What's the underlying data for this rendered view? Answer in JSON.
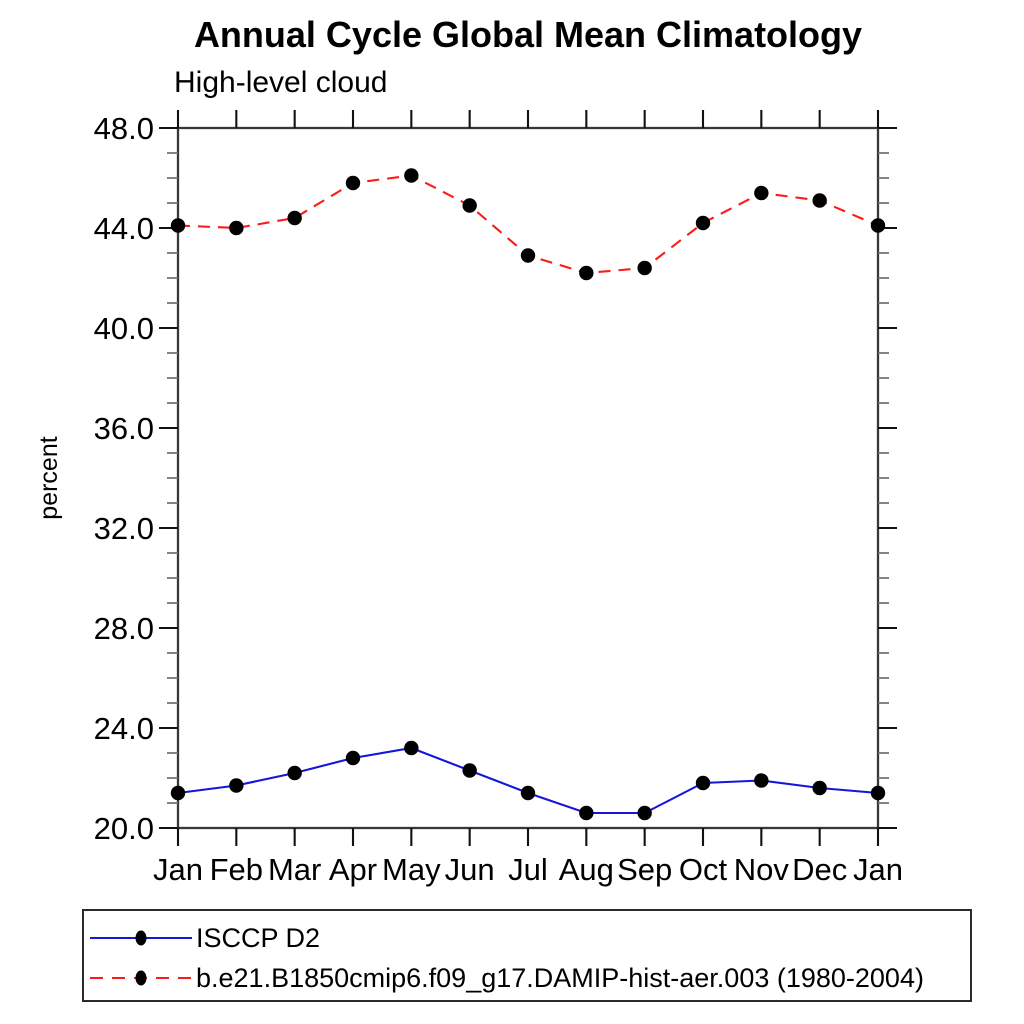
{
  "title": "Annual Cycle Global Mean Climatology",
  "subtitle": "High-level cloud",
  "chart_data": {
    "type": "line",
    "categories": [
      "Jan",
      "Feb",
      "Mar",
      "Apr",
      "May",
      "Jun",
      "Jul",
      "Aug",
      "Sep",
      "Oct",
      "Nov",
      "Dec",
      "Jan"
    ],
    "xlabel": "",
    "ylabel": "percent",
    "ylim": [
      20.0,
      48.0
    ],
    "ytick_interval": 4.0,
    "yminor_interval": 1.0,
    "ytick_labels": [
      "20.0",
      "24.0",
      "28.0",
      "32.0",
      "36.0",
      "40.0",
      "44.0",
      "48.0"
    ],
    "grid": false,
    "legend_position": "bottom-left-box",
    "series": [
      {
        "name": "ISCCP D2",
        "color": "#1515dd",
        "line_style": "solid",
        "marker": "filled-circle",
        "marker_color": "#000000",
        "values": [
          21.4,
          21.7,
          22.2,
          22.8,
          23.2,
          22.3,
          21.4,
          20.6,
          20.6,
          21.8,
          21.9,
          21.6,
          21.4
        ]
      },
      {
        "name": "b.e21.B1850cmip6.f09_g17.DAMIP-hist-aer.003 (1980-2004)",
        "color": "#ff1a1a",
        "line_style": "dashed",
        "marker": "filled-circle",
        "marker_color": "#000000",
        "values": [
          44.1,
          44.0,
          44.4,
          45.8,
          46.1,
          44.9,
          42.9,
          42.2,
          42.4,
          44.2,
          45.4,
          45.1,
          44.1
        ]
      }
    ]
  }
}
